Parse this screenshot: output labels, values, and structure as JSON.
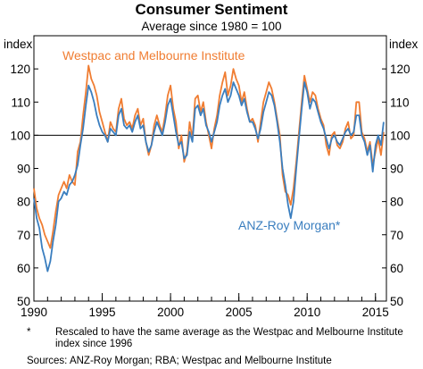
{
  "chart_data": {
    "type": "line",
    "title": "Consumer Sentiment",
    "subtitle": "Average since 1980 = 100",
    "ylabel_left": "index",
    "ylabel_right": "index",
    "xlim": [
      1990,
      2015.8
    ],
    "ylim": [
      50,
      130
    ],
    "x_ticks": [
      "1990",
      "1995",
      "2000",
      "2005",
      "2010",
      "2015"
    ],
    "y_ticks": [
      "50",
      "60",
      "70",
      "80",
      "90",
      "100",
      "110",
      "120"
    ],
    "reference_line": 100,
    "series": [
      {
        "name": "Westpac and Melbourne Institute",
        "color": "#f07d32",
        "points": [
          [
            1990.0,
            84
          ],
          [
            1990.2,
            78
          ],
          [
            1990.4,
            75
          ],
          [
            1990.6,
            73
          ],
          [
            1990.8,
            70
          ],
          [
            1991.0,
            68
          ],
          [
            1991.2,
            66
          ],
          [
            1991.4,
            71
          ],
          [
            1991.6,
            77
          ],
          [
            1991.8,
            82
          ],
          [
            1992.0,
            84
          ],
          [
            1992.2,
            86
          ],
          [
            1992.4,
            84
          ],
          [
            1992.6,
            88
          ],
          [
            1992.8,
            86
          ],
          [
            1993.0,
            85
          ],
          [
            1993.2,
            95
          ],
          [
            1993.4,
            98
          ],
          [
            1993.6,
            106
          ],
          [
            1993.8,
            113
          ],
          [
            1994.0,
            121
          ],
          [
            1994.2,
            117
          ],
          [
            1994.4,
            115
          ],
          [
            1994.6,
            112
          ],
          [
            1994.8,
            107
          ],
          [
            1995.0,
            104
          ],
          [
            1995.2,
            101
          ],
          [
            1995.4,
            98
          ],
          [
            1995.6,
            104
          ],
          [
            1995.8,
            102
          ],
          [
            1996.0,
            101
          ],
          [
            1996.2,
            108
          ],
          [
            1996.4,
            111
          ],
          [
            1996.6,
            105
          ],
          [
            1996.8,
            103
          ],
          [
            1997.0,
            104
          ],
          [
            1997.2,
            102
          ],
          [
            1997.4,
            106
          ],
          [
            1997.6,
            108
          ],
          [
            1997.8,
            103
          ],
          [
            1998.0,
            105
          ],
          [
            1998.2,
            98
          ],
          [
            1998.4,
            94
          ],
          [
            1998.6,
            97
          ],
          [
            1998.8,
            103
          ],
          [
            1999.0,
            106
          ],
          [
            1999.2,
            103
          ],
          [
            1999.4,
            101
          ],
          [
            1999.6,
            106
          ],
          [
            1999.8,
            112
          ],
          [
            2000.0,
            115
          ],
          [
            2000.2,
            108
          ],
          [
            2000.4,
            104
          ],
          [
            2000.6,
            96
          ],
          [
            2000.8,
            100
          ],
          [
            2001.0,
            92
          ],
          [
            2001.2,
            95
          ],
          [
            2001.4,
            104
          ],
          [
            2001.6,
            99
          ],
          [
            2001.8,
            111
          ],
          [
            2002.0,
            112
          ],
          [
            2002.2,
            107
          ],
          [
            2002.4,
            110
          ],
          [
            2002.6,
            104
          ],
          [
            2002.8,
            100
          ],
          [
            2003.0,
            96
          ],
          [
            2003.2,
            102
          ],
          [
            2003.4,
            106
          ],
          [
            2003.6,
            112
          ],
          [
            2003.8,
            116
          ],
          [
            2004.0,
            119
          ],
          [
            2004.2,
            112
          ],
          [
            2004.4,
            115
          ],
          [
            2004.6,
            120
          ],
          [
            2004.8,
            117
          ],
          [
            2005.0,
            115
          ],
          [
            2005.2,
            110
          ],
          [
            2005.4,
            113
          ],
          [
            2005.6,
            108
          ],
          [
            2005.8,
            104
          ],
          [
            2006.0,
            105
          ],
          [
            2006.2,
            103
          ],
          [
            2006.4,
            98
          ],
          [
            2006.6,
            104
          ],
          [
            2006.8,
            110
          ],
          [
            2007.0,
            113
          ],
          [
            2007.2,
            116
          ],
          [
            2007.4,
            114
          ],
          [
            2007.6,
            110
          ],
          [
            2007.8,
            105
          ],
          [
            2008.0,
            100
          ],
          [
            2008.2,
            88
          ],
          [
            2008.4,
            83
          ],
          [
            2008.6,
            82
          ],
          [
            2008.8,
            79
          ],
          [
            2009.0,
            84
          ],
          [
            2009.2,
            92
          ],
          [
            2009.4,
            101
          ],
          [
            2009.6,
            110
          ],
          [
            2009.8,
            118
          ],
          [
            2010.0,
            114
          ],
          [
            2010.2,
            110
          ],
          [
            2010.4,
            113
          ],
          [
            2010.6,
            112
          ],
          [
            2010.8,
            108
          ],
          [
            2011.0,
            105
          ],
          [
            2011.2,
            103
          ],
          [
            2011.4,
            97
          ],
          [
            2011.6,
            94
          ],
          [
            2011.8,
            100
          ],
          [
            2012.0,
            101
          ],
          [
            2012.2,
            97
          ],
          [
            2012.4,
            96
          ],
          [
            2012.6,
            98
          ],
          [
            2012.8,
            102
          ],
          [
            2013.0,
            104
          ],
          [
            2013.2,
            99
          ],
          [
            2013.4,
            100
          ],
          [
            2013.6,
            110
          ],
          [
            2013.8,
            110
          ],
          [
            2014.0,
            101
          ],
          [
            2014.2,
            99
          ],
          [
            2014.4,
            95
          ],
          [
            2014.6,
            98
          ],
          [
            2014.8,
            91
          ],
          [
            2015.0,
            95
          ],
          [
            2015.2,
            99
          ],
          [
            2015.4,
            94
          ],
          [
            2015.6,
            101
          ]
        ]
      },
      {
        "name": "ANZ-Roy Morgan*",
        "color": "#3a7ebf",
        "points": [
          [
            1990.0,
            81
          ],
          [
            1990.2,
            75
          ],
          [
            1990.4,
            72
          ],
          [
            1990.6,
            66
          ],
          [
            1990.8,
            63
          ],
          [
            1991.0,
            59
          ],
          [
            1991.2,
            62
          ],
          [
            1991.4,
            68
          ],
          [
            1991.6,
            73
          ],
          [
            1991.8,
            80
          ],
          [
            1992.0,
            81
          ],
          [
            1992.2,
            83
          ],
          [
            1992.4,
            82
          ],
          [
            1992.6,
            85
          ],
          [
            1992.8,
            86
          ],
          [
            1993.0,
            88
          ],
          [
            1993.2,
            91
          ],
          [
            1993.4,
            97
          ],
          [
            1993.6,
            102
          ],
          [
            1993.8,
            109
          ],
          [
            1994.0,
            115
          ],
          [
            1994.2,
            113
          ],
          [
            1994.4,
            110
          ],
          [
            1994.6,
            106
          ],
          [
            1994.8,
            103
          ],
          [
            1995.0,
            101
          ],
          [
            1995.2,
            100
          ],
          [
            1995.4,
            98
          ],
          [
            1995.6,
            102
          ],
          [
            1995.8,
            101
          ],
          [
            1996.0,
            100
          ],
          [
            1996.2,
            106
          ],
          [
            1996.4,
            108
          ],
          [
            1996.6,
            103
          ],
          [
            1996.8,
            102
          ],
          [
            1997.0,
            103
          ],
          [
            1997.2,
            101
          ],
          [
            1997.4,
            104
          ],
          [
            1997.6,
            106
          ],
          [
            1997.8,
            102
          ],
          [
            1998.0,
            103
          ],
          [
            1998.2,
            98
          ],
          [
            1998.4,
            95
          ],
          [
            1998.6,
            97
          ],
          [
            1998.8,
            101
          ],
          [
            1999.0,
            104
          ],
          [
            1999.2,
            102
          ],
          [
            1999.4,
            100
          ],
          [
            1999.6,
            104
          ],
          [
            1999.8,
            109
          ],
          [
            2000.0,
            111
          ],
          [
            2000.2,
            106
          ],
          [
            2000.4,
            101
          ],
          [
            2000.6,
            97
          ],
          [
            2000.8,
            98
          ],
          [
            2001.0,
            93
          ],
          [
            2001.2,
            94
          ],
          [
            2001.4,
            101
          ],
          [
            2001.6,
            98
          ],
          [
            2001.8,
            108
          ],
          [
            2002.0,
            109
          ],
          [
            2002.2,
            106
          ],
          [
            2002.4,
            108
          ],
          [
            2002.6,
            103
          ],
          [
            2002.8,
            101
          ],
          [
            2003.0,
            98
          ],
          [
            2003.2,
            101
          ],
          [
            2003.4,
            104
          ],
          [
            2003.6,
            109
          ],
          [
            2003.8,
            112
          ],
          [
            2004.0,
            114
          ],
          [
            2004.2,
            110
          ],
          [
            2004.4,
            112
          ],
          [
            2004.6,
            116
          ],
          [
            2004.8,
            114
          ],
          [
            2005.0,
            112
          ],
          [
            2005.2,
            109
          ],
          [
            2005.4,
            111
          ],
          [
            2005.6,
            107
          ],
          [
            2005.8,
            104
          ],
          [
            2006.0,
            104
          ],
          [
            2006.2,
            102
          ],
          [
            2006.4,
            99
          ],
          [
            2006.6,
            102
          ],
          [
            2006.8,
            107
          ],
          [
            2007.0,
            110
          ],
          [
            2007.2,
            113
          ],
          [
            2007.4,
            112
          ],
          [
            2007.6,
            109
          ],
          [
            2007.8,
            104
          ],
          [
            2008.0,
            98
          ],
          [
            2008.2,
            90
          ],
          [
            2008.4,
            85
          ],
          [
            2008.6,
            79
          ],
          [
            2008.8,
            75
          ],
          [
            2009.0,
            80
          ],
          [
            2009.2,
            90
          ],
          [
            2009.4,
            99
          ],
          [
            2009.6,
            108
          ],
          [
            2009.8,
            116
          ],
          [
            2010.0,
            113
          ],
          [
            2010.2,
            108
          ],
          [
            2010.4,
            111
          ],
          [
            2010.6,
            110
          ],
          [
            2010.8,
            107
          ],
          [
            2011.0,
            104
          ],
          [
            2011.2,
            102
          ],
          [
            2011.4,
            99
          ],
          [
            2011.6,
            96
          ],
          [
            2011.8,
            99
          ],
          [
            2012.0,
            100
          ],
          [
            2012.2,
            98
          ],
          [
            2012.4,
            97
          ],
          [
            2012.6,
            99
          ],
          [
            2012.8,
            101
          ],
          [
            2013.0,
            102
          ],
          [
            2013.2,
            100
          ],
          [
            2013.4,
            101
          ],
          [
            2013.6,
            106
          ],
          [
            2013.8,
            106
          ],
          [
            2014.0,
            100
          ],
          [
            2014.2,
            98
          ],
          [
            2014.4,
            94
          ],
          [
            2014.6,
            97
          ],
          [
            2014.8,
            89
          ],
          [
            2015.0,
            97
          ],
          [
            2015.2,
            100
          ],
          [
            2015.4,
            97
          ],
          [
            2015.6,
            104
          ]
        ]
      }
    ]
  },
  "footnote": {
    "mark": "*",
    "text": "Rescaled to have the same average as the Westpac and Melbourne Institute index since 1996"
  },
  "sources": "Sources:   ANZ-Roy Morgan; RBA; Westpac and Melbourne Institute"
}
